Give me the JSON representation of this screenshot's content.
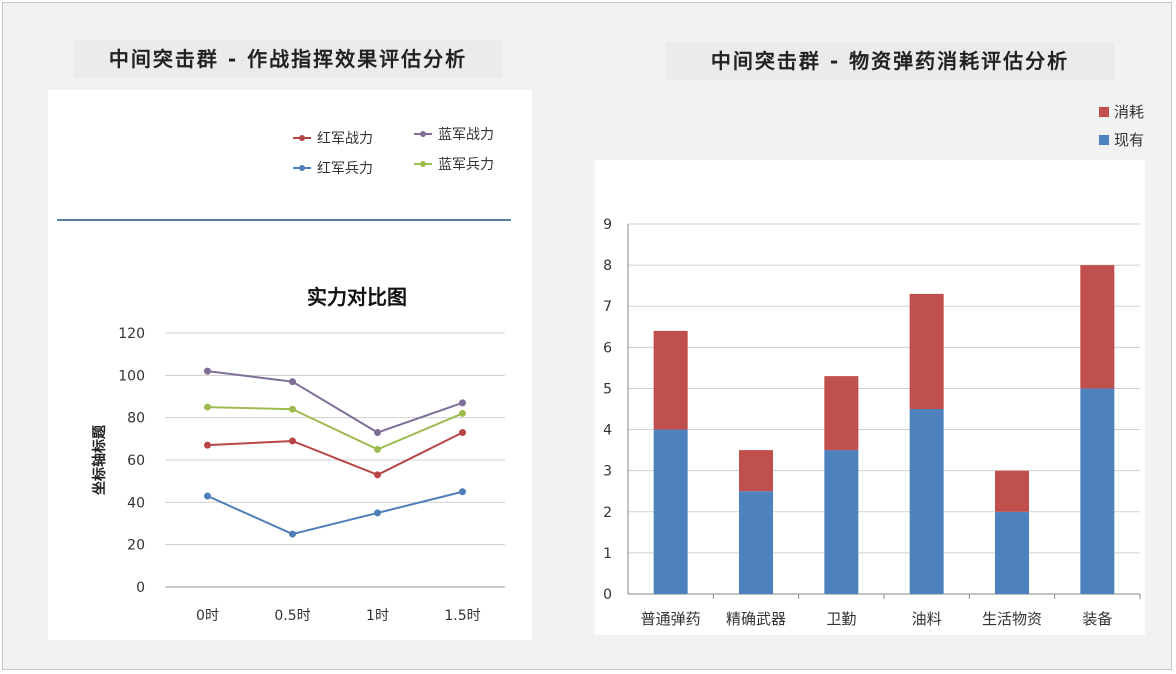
{
  "panels": {
    "left_title": "中间突击群 - 作战指挥效果评估分析",
    "right_title": "中间突击群 - 物资弹药消耗评估分析"
  },
  "chart_data": [
    {
      "type": "line",
      "title": "实力对比图",
      "ylabel": "坐标轴标题",
      "xlabel": "",
      "x": [
        "0时",
        "0.5时",
        "1时",
        "1.5时"
      ],
      "ylim": [
        0,
        120
      ],
      "yticks": [
        0,
        20,
        40,
        60,
        80,
        100,
        120
      ],
      "grid": true,
      "legend": "top",
      "series": [
        {
          "name": "红军战力",
          "values": [
            67,
            69,
            53,
            73
          ],
          "color": "#b84545"
        },
        {
          "name": "蓝军战力",
          "values": [
            102,
            97,
            73,
            87
          ],
          "color": "#7f6f98"
        },
        {
          "name": "红军兵力",
          "values": [
            43,
            25,
            35,
            45
          ],
          "color": "#4f7fb8"
        },
        {
          "name": "蓝军兵力",
          "values": [
            85,
            84,
            65,
            82
          ],
          "color": "#9dbb4e"
        }
      ]
    },
    {
      "type": "bar",
      "stacked": true,
      "categories": [
        "普通弹药",
        "精确武器",
        "卫勤",
        "油料",
        "生活物资",
        "装备"
      ],
      "ylim": [
        0,
        9
      ],
      "yticks": [
        0,
        1,
        2,
        3,
        4,
        5,
        6,
        7,
        8,
        9
      ],
      "grid": true,
      "legend": "top-right",
      "series": [
        {
          "name": "现有",
          "values": [
            4,
            2.5,
            3.5,
            4.5,
            2,
            5
          ],
          "color": "#4f81bd"
        },
        {
          "name": "消耗",
          "values": [
            2.4,
            1,
            1.8,
            2.8,
            1,
            3
          ],
          "color": "#c0504d"
        }
      ]
    }
  ]
}
